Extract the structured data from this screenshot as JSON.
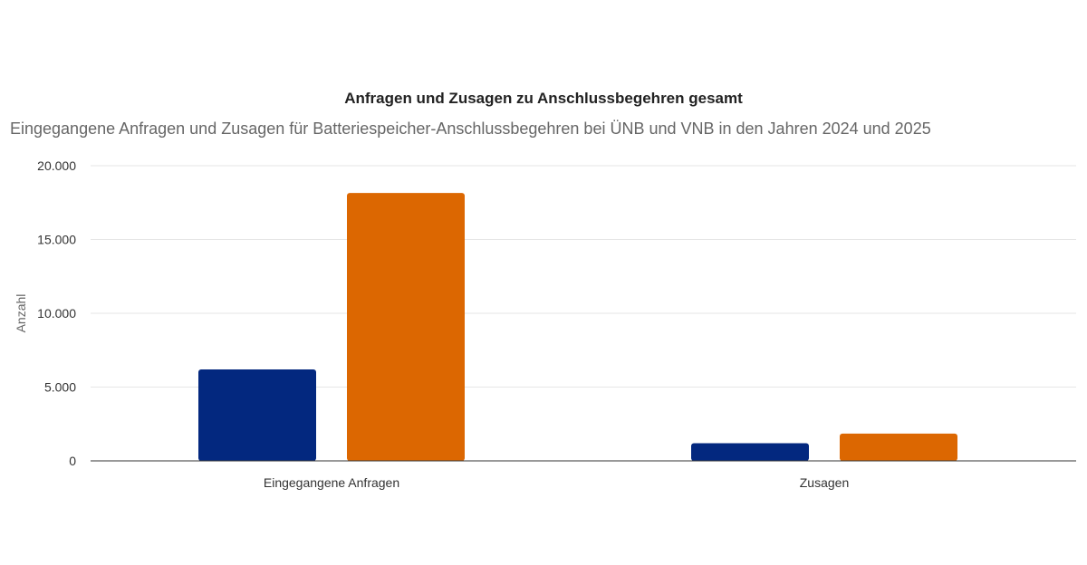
{
  "chart_data": {
    "type": "bar",
    "title": "Anfragen und Zusagen zu Anschlussbegehren gesamt",
    "subtitle": "Eingegangene Anfragen und Zusagen für Batteriespeicher-Anschlussbegehren bei ÜNB und VNB in den Jahren 2024 und 2025",
    "ylabel": "Anzahl",
    "xlabel": "",
    "categories": [
      "Eingegangene Anfragen",
      "Zusagen"
    ],
    "series": [
      {
        "color": "#03287f",
        "values": [
          6200,
          1200
        ]
      },
      {
        "color": "#dc6701",
        "values": [
          18150,
          1850
        ]
      }
    ],
    "ylim": [
      0,
      20000
    ],
    "yticks": [
      0,
      5000,
      10000,
      15000,
      20000
    ],
    "ytick_labels": [
      "0",
      "5.000",
      "10.000",
      "15.000",
      "20.000"
    ],
    "grid": true,
    "legend": "none"
  }
}
